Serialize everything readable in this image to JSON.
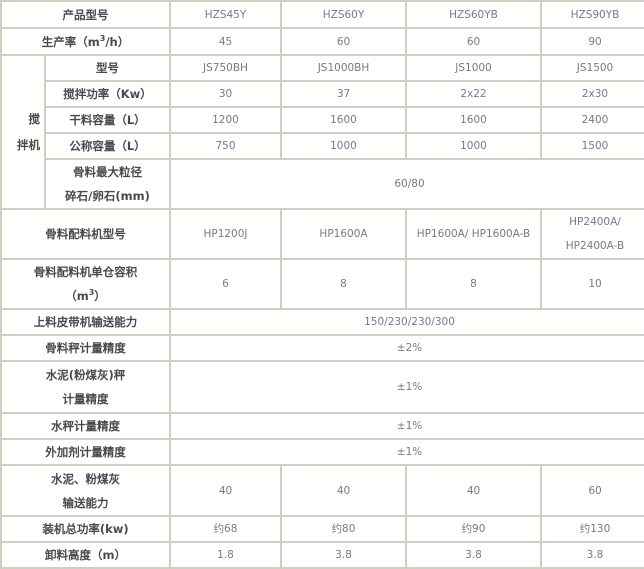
{
  "header": {
    "label": "产品型号",
    "models": [
      "HZS45Y",
      "HZS60Y",
      "HZS60YB",
      "HZS90YB"
    ]
  },
  "production": {
    "label_pre": "生产率（m",
    "label_sup": "3",
    "label_post": "/h）",
    "values": [
      "45",
      "60",
      "60",
      "90"
    ]
  },
  "mixer": {
    "group_label_1": "搅",
    "group_label_2": "拌机",
    "model": {
      "label": "型号",
      "values": [
        "JS750BH",
        "JS1000BH",
        "JS1000",
        "JS1500"
      ]
    },
    "power": {
      "label": "搅拌功率（Kw）",
      "values": [
        "30",
        "37",
        "2x22",
        "2x30"
      ]
    },
    "dry_capacity": {
      "label": "干料容量（L）",
      "values": [
        "1200",
        "1600",
        "1600",
        "2400"
      ]
    },
    "nominal_capacity": {
      "label": "公称容量（L）",
      "values": [
        "750",
        "1000",
        "1000",
        "1500"
      ]
    },
    "max_aggregate": {
      "label_1": "骨料最大粒径",
      "label_2": "碎石/卵石(mm)",
      "value": "60/80"
    }
  },
  "batcher_model": {
    "label": "骨料配料机型号",
    "values": [
      "HP1200J",
      "HP1600A",
      "HP1600A/ HP1600A-B",
      "HP2400A/"
    ],
    "value4_line2": "HP2400A-B"
  },
  "batcher_volume": {
    "label_1": "骨料配料机单仓容积",
    "label_2_pre": "（m",
    "label_2_sup": "3",
    "label_2_post": "）",
    "values": [
      "6",
      "8",
      "8",
      "10"
    ]
  },
  "belt": {
    "label": "上料皮带机输送能力",
    "value": "150/230/230/300"
  },
  "aggregate_accuracy": {
    "label": "骨料秤计量精度",
    "value": "±2%"
  },
  "cement_accuracy": {
    "label_1": "水泥(粉煤灰)秤",
    "label_2": "计量精度",
    "value": "±1%"
  },
  "water_accuracy": {
    "label": "水秤计量精度",
    "value": "±1%"
  },
  "additive_accuracy": {
    "label": "外加剂计量精度",
    "value": "±1%"
  },
  "cement_conveying": {
    "label_1": "水泥、粉煤灰",
    "label_2": "输送能力",
    "values": [
      "40",
      "40",
      "40",
      "60"
    ]
  },
  "total_power": {
    "label": "装机总功率(kw)",
    "values": [
      "约68",
      "约80",
      "约90",
      "约130"
    ]
  },
  "discharge_height": {
    "label": "卸料高度（m）",
    "values": [
      "1.8",
      "3.8",
      "3.8",
      "3.8"
    ]
  }
}
